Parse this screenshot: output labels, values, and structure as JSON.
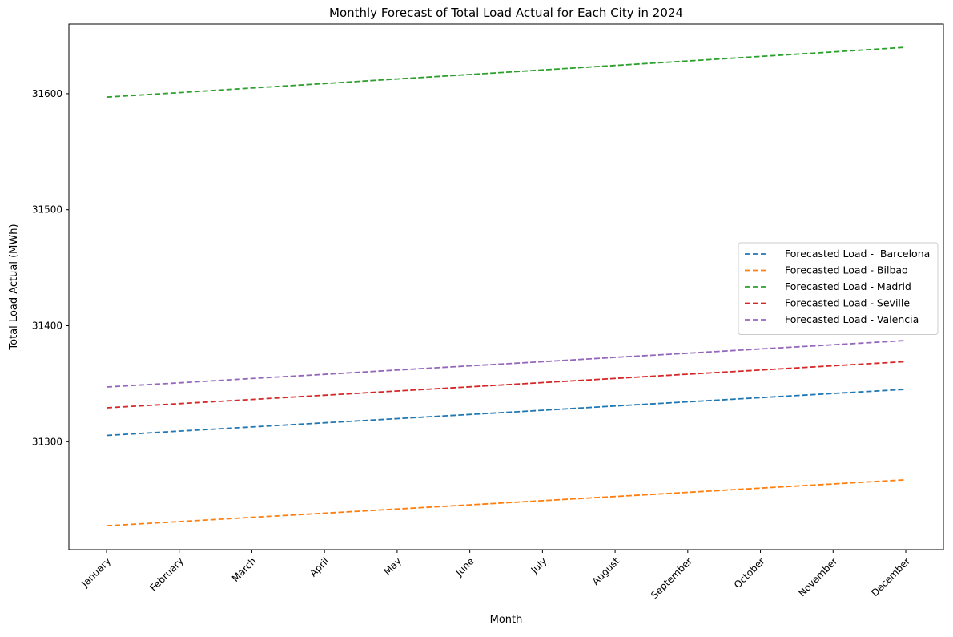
{
  "chart_data": {
    "type": "line",
    "title": "Monthly Forecast of Total Load Actual for Each City in 2024",
    "xlabel": "Month",
    "ylabel": "Total Load Actual (MWh)",
    "categories": [
      "January",
      "February",
      "March",
      "April",
      "May",
      "June",
      "July",
      "August",
      "September",
      "October",
      "November",
      "December"
    ],
    "ylim": [
      31207,
      31660
    ],
    "yticks": [
      31300,
      31400,
      31500,
      31600
    ],
    "grid": false,
    "legend_position": "center-right",
    "line_style": "dashed",
    "series": [
      {
        "name": "Forecasted Load -  Barcelona",
        "color": "#1f77b4",
        "values": [
          31305.4,
          31309.1,
          31312.7,
          31316.3,
          31319.9,
          31323.5,
          31327.1,
          31330.8,
          31334.4,
          31338.0,
          31341.6,
          31345.2
        ]
      },
      {
        "name": "Forecasted Load - Bilbao",
        "color": "#ff7f0e",
        "values": [
          31227.6,
          31231.2,
          31234.8,
          31238.4,
          31242.0,
          31245.6,
          31249.2,
          31252.8,
          31256.4,
          31260.0,
          31263.6,
          31267.2
        ]
      },
      {
        "name": "Forecasted Load - Madrid",
        "color": "#2ca02c",
        "values": [
          31597.0,
          31600.9,
          31604.8,
          31608.7,
          31612.6,
          31616.5,
          31620.4,
          31624.3,
          31628.2,
          31632.1,
          31636.0,
          31640.0
        ]
      },
      {
        "name": "Forecasted Load - Seville",
        "color": "#d62728",
        "values": [
          31329.2,
          31332.8,
          31336.4,
          31340.1,
          31343.7,
          31347.3,
          31351.0,
          31354.6,
          31358.2,
          31361.8,
          31365.5,
          31369.1
        ]
      },
      {
        "name": "Forecasted Load - Valencia",
        "color": "#9467bd",
        "values": [
          31347.2,
          31350.8,
          31354.5,
          31358.1,
          31361.8,
          31365.4,
          31369.0,
          31372.7,
          31376.3,
          31380.0,
          31383.6,
          31387.2
        ]
      }
    ]
  }
}
